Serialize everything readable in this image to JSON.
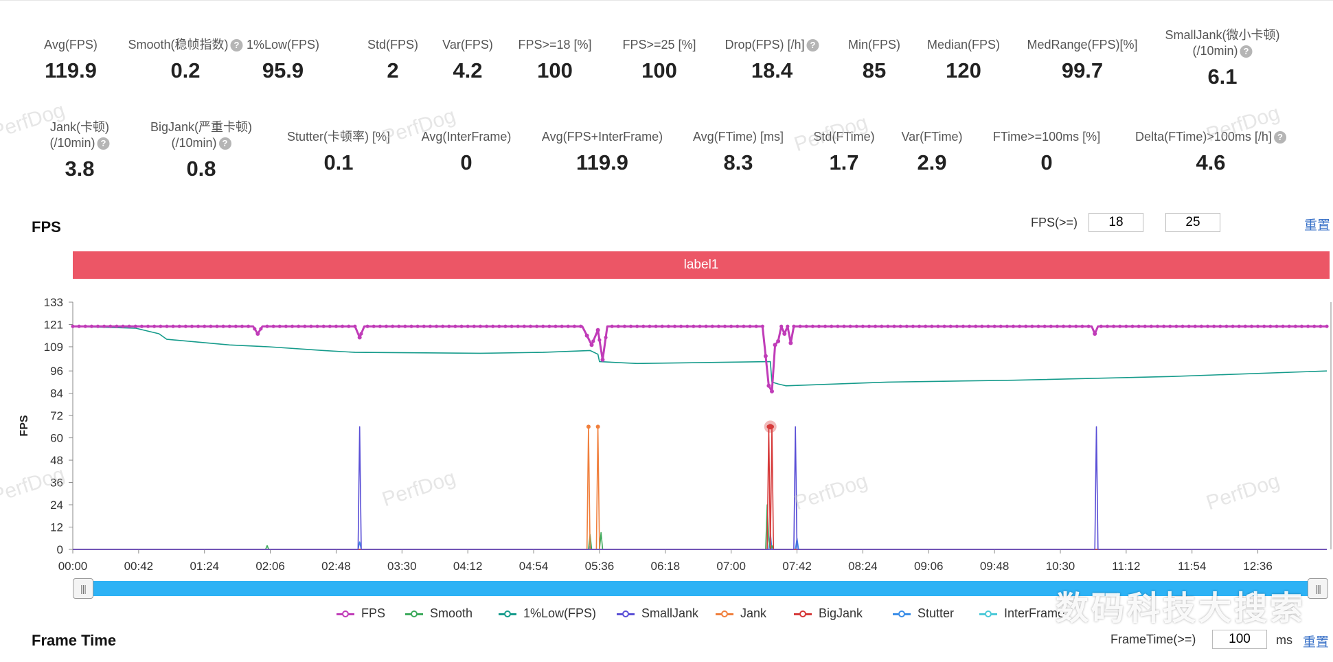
{
  "stats_row1": [
    {
      "label": "Avg(FPS)",
      "value": "119.9",
      "help": false
    },
    {
      "label": "Smooth(稳帧指数)",
      "value": "0.2",
      "help": true
    },
    {
      "label": "1%Low(FPS)",
      "value": "95.9",
      "help": false
    },
    {
      "label": "Std(FPS)",
      "value": "2",
      "help": false
    },
    {
      "label": "Var(FPS)",
      "value": "4.2",
      "help": false
    },
    {
      "label": "FPS>=18 [%]",
      "value": "100",
      "help": false
    },
    {
      "label": "FPS>=25 [%]",
      "value": "100",
      "help": false
    },
    {
      "label": "Drop(FPS) [/h]",
      "value": "18.4",
      "help": true
    },
    {
      "label": "Min(FPS)",
      "value": "85",
      "help": false
    },
    {
      "label": "Median(FPS)",
      "value": "120",
      "help": false
    },
    {
      "label": "MedRange(FPS)[%]",
      "value": "99.7",
      "help": false
    },
    {
      "label": "SmallJank(微小卡顿)",
      "label2": "(/10min)",
      "value": "6.1",
      "help": true
    }
  ],
  "stats_row2": [
    {
      "label": "Jank(卡顿)",
      "label2": "(/10min)",
      "value": "3.8",
      "help": true
    },
    {
      "label": "BigJank(严重卡顿)",
      "label2": "(/10min)",
      "value": "0.8",
      "help": true
    },
    {
      "label": "Stutter(卡顿率) [%]",
      "value": "0.1",
      "help": false
    },
    {
      "label": "Avg(InterFrame)",
      "value": "0",
      "help": false
    },
    {
      "label": "Avg(FPS+InterFrame)",
      "value": "119.9",
      "help": false
    },
    {
      "label": "Avg(FTime) [ms]",
      "value": "8.3",
      "help": false
    },
    {
      "label": "Std(FTime)",
      "value": "1.7",
      "help": false
    },
    {
      "label": "Var(FTime)",
      "value": "2.9",
      "help": false
    },
    {
      "label": "FTime>=100ms [%]",
      "value": "0",
      "help": false
    },
    {
      "label": "Delta(FTime)>100ms [/h]",
      "value": "4.6",
      "help": true
    }
  ],
  "fps_section": {
    "title": "FPS",
    "threshold_label": "FPS(>=)",
    "threshold1": "18",
    "threshold2": "25",
    "reset": "重置",
    "label_bar": "label1"
  },
  "frametime_section": {
    "title": "Frame Time",
    "threshold_label": "FrameTime(>=)",
    "threshold": "100",
    "unit": "ms",
    "reset": "重置"
  },
  "watermark": "数码科技大搜索",
  "watermark_bg": "PerfDog",
  "chart_data": {
    "type": "line",
    "ylabel": "FPS",
    "y_ticks": [
      0,
      12,
      24,
      36,
      48,
      60,
      72,
      84,
      96,
      109,
      121,
      133
    ],
    "ylim": [
      0,
      133
    ],
    "xlim_seconds": [
      0,
      800
    ],
    "x_tick_labels": [
      "00:00",
      "00:42",
      "01:24",
      "02:06",
      "02:48",
      "03:30",
      "04:12",
      "04:54",
      "05:36",
      "06:18",
      "07:00",
      "07:42",
      "08:24",
      "09:06",
      "09:48",
      "10:30",
      "11:12",
      "11:54",
      "12:36"
    ],
    "x_tick_seconds": [
      0,
      42,
      84,
      126,
      168,
      210,
      252,
      294,
      336,
      378,
      420,
      462,
      504,
      546,
      588,
      630,
      672,
      714,
      756
    ],
    "grid": false,
    "legend_position": "bottom",
    "series": [
      {
        "name": "FPS",
        "color": "#c03cb8",
        "x": [
          0,
          50,
          115,
          118,
          121,
          180,
          183,
          186,
          325,
          328,
          331,
          335,
          338,
          341,
          440,
          442,
          444,
          446,
          448,
          450,
          452,
          454,
          456,
          458,
          460,
          462,
          600,
          650,
          652,
          654,
          800
        ],
        "y": [
          120,
          120,
          120,
          116,
          120,
          120,
          114,
          120,
          120,
          115,
          110,
          118,
          102,
          120,
          120,
          104,
          88,
          85,
          110,
          112,
          120,
          116,
          120,
          111,
          120,
          120,
          120,
          120,
          116,
          120,
          120
        ]
      },
      {
        "name": "Smooth",
        "color": "#3daa5c",
        "x": [
          0,
          123,
          124,
          125,
          126,
          329,
          330,
          331,
          336,
          337,
          338,
          442,
          443,
          444,
          445,
          446,
          447,
          448,
          800
        ],
        "y": [
          0,
          0,
          2,
          0,
          0,
          0,
          8,
          0,
          0,
          9,
          0,
          0,
          24,
          5,
          0,
          2,
          0,
          0,
          0
        ]
      },
      {
        "name": "1%Low(FPS)",
        "color": "#159b8b",
        "x": [
          0,
          40,
          55,
          60,
          100,
          125,
          160,
          180,
          260,
          300,
          330,
          335,
          336,
          360,
          445,
          446,
          450,
          455,
          520,
          600,
          700,
          800
        ],
        "y": [
          120,
          119,
          116,
          113,
          110,
          109,
          107,
          106,
          105.5,
          106,
          107,
          105,
          101,
          100,
          101,
          90,
          89,
          88,
          90,
          91,
          93,
          96
        ]
      },
      {
        "name": "SmallJank",
        "color": "#5a4fd6",
        "x": [
          0,
          182,
          183,
          184,
          185,
          186,
          460,
          461,
          462,
          463,
          464,
          652,
          653,
          654,
          655,
          800
        ],
        "y": [
          0,
          0,
          66,
          0,
          0,
          0,
          0,
          66,
          0,
          0,
          0,
          0,
          66,
          0,
          0,
          0
        ]
      },
      {
        "name": "Jank",
        "color": "#f07f3c",
        "x": [
          0,
          328,
          329,
          330,
          334,
          335,
          336,
          800
        ],
        "y": [
          0,
          0,
          66,
          0,
          0,
          66,
          0,
          0
        ]
      },
      {
        "name": "BigJank",
        "color": "#d63a3a",
        "x": [
          0,
          443,
          444,
          445,
          446,
          447,
          448,
          800
        ],
        "y": [
          0,
          0,
          66,
          0,
          66,
          0,
          0,
          0
        ]
      },
      {
        "name": "Stutter",
        "color": "#3b8ee8",
        "x": [
          0,
          182,
          183,
          184,
          329,
          330,
          331,
          444,
          445,
          446,
          461,
          462,
          463,
          800
        ],
        "y": [
          0,
          0,
          4,
          0,
          0,
          2,
          0,
          0,
          9,
          0,
          0,
          6,
          0,
          0
        ]
      },
      {
        "name": "InterFrame",
        "color": "#4cc9d8",
        "x": [
          0,
          800
        ],
        "y": [
          0,
          0
        ]
      }
    ],
    "highlight_point": {
      "x": 445,
      "y": 66
    }
  }
}
